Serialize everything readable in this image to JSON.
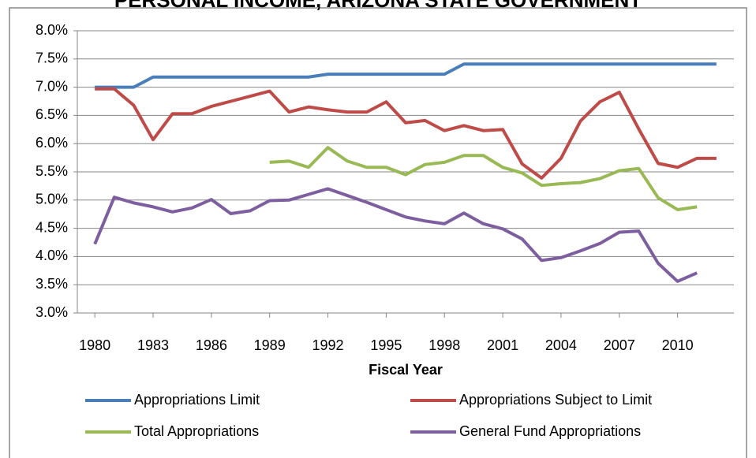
{
  "chart_data": {
    "type": "line",
    "title": "PERSONAL INCOME, ARIZONA STATE GOVERNMENT",
    "x_label": "Fiscal Year",
    "x": [
      1980,
      1981,
      1982,
      1983,
      1984,
      1985,
      1986,
      1987,
      1988,
      1989,
      1990,
      1991,
      1992,
      1993,
      1994,
      1995,
      1996,
      1997,
      1998,
      1999,
      2000,
      2001,
      2002,
      2003,
      2004,
      2005,
      2006,
      2007,
      2008,
      2009,
      2010,
      2011,
      2012
    ],
    "xlim": [
      1979.1,
      2012.9
    ],
    "xticks": [
      1980,
      1983,
      1986,
      1989,
      1992,
      1995,
      1998,
      2001,
      2004,
      2007,
      2010
    ],
    "ylim": [
      3,
      8
    ],
    "yticks": [
      {
        "value": 3,
        "label": "3.0%"
      },
      {
        "value": 3.5,
        "label": "3.5%"
      },
      {
        "value": 4,
        "label": "4.0%"
      },
      {
        "value": 4.5,
        "label": "4.5%"
      },
      {
        "value": 5,
        "label": "5.0%"
      },
      {
        "value": 5.5,
        "label": "5.5%"
      },
      {
        "value": 6,
        "label": "6.0%"
      },
      {
        "value": 6.5,
        "label": "6.5%"
      },
      {
        "value": 7,
        "label": "7.0%"
      },
      {
        "value": 7.5,
        "label": "7.5%"
      },
      {
        "value": 8,
        "label": "8.0%"
      }
    ],
    "grid": true,
    "series": [
      {
        "name": "Appropriations Limit",
        "color": "#4a7ebb",
        "values": [
          7.0,
          7.0,
          7.0,
          7.18,
          7.18,
          7.18,
          7.18,
          7.18,
          7.18,
          7.18,
          7.18,
          7.18,
          7.23,
          7.23,
          7.23,
          7.23,
          7.23,
          7.23,
          7.23,
          7.41,
          7.41,
          7.41,
          7.41,
          7.41,
          7.41,
          7.41,
          7.41,
          7.41,
          7.41,
          7.41,
          7.41,
          7.41,
          7.41
        ]
      },
      {
        "name": "Appropriations Subject to Limit",
        "color": "#be4b48",
        "values": [
          6.97,
          6.97,
          6.68,
          6.07,
          6.53,
          6.53,
          6.66,
          6.75,
          6.84,
          6.93,
          6.56,
          6.65,
          6.6,
          6.56,
          6.56,
          6.74,
          6.37,
          6.41,
          6.23,
          6.32,
          6.23,
          6.25,
          5.64,
          5.39,
          5.74,
          6.4,
          6.74,
          6.91,
          6.26,
          5.65,
          5.58,
          5.74,
          5.74
        ]
      },
      {
        "name": "Total Appropriations",
        "color": "#98b954",
        "values": [
          null,
          null,
          null,
          null,
          null,
          null,
          null,
          null,
          null,
          5.67,
          5.69,
          5.58,
          5.93,
          5.69,
          5.58,
          5.58,
          5.45,
          5.63,
          5.67,
          5.79,
          5.79,
          5.58,
          5.48,
          5.26,
          5.29,
          5.31,
          5.38,
          5.52,
          5.56,
          5.04,
          4.83,
          4.88,
          null
        ]
      },
      {
        "name": "General Fund Appropriations",
        "color": "#7d5fa0",
        "values": [
          4.22,
          5.05,
          4.95,
          4.88,
          4.79,
          4.86,
          5.01,
          4.76,
          4.81,
          4.99,
          5.0,
          5.1,
          5.2,
          5.08,
          4.96,
          4.83,
          4.7,
          4.63,
          4.58,
          4.77,
          4.58,
          4.49,
          4.31,
          3.93,
          3.98,
          4.1,
          4.23,
          4.43,
          4.45,
          3.88,
          3.56,
          3.71,
          null
        ]
      }
    ]
  }
}
